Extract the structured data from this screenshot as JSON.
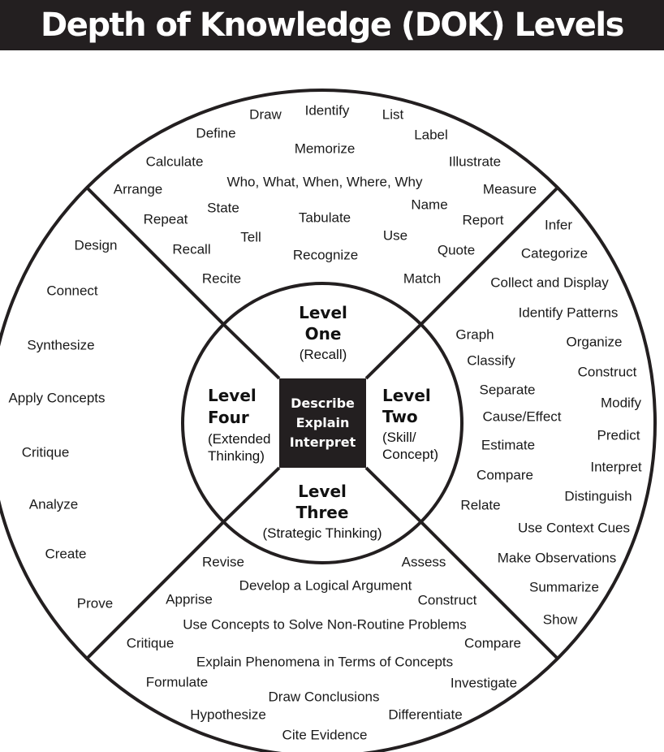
{
  "title": "Depth of Knowledge (DOK) Levels",
  "center": [
    "Describe",
    "Explain",
    "Interpret"
  ],
  "levels": {
    "one": {
      "title": [
        "Level",
        "One"
      ],
      "subtitle": [
        "(Recall)"
      ]
    },
    "two": {
      "title": [
        "Level",
        "Two"
      ],
      "subtitle": [
        "(Skill/",
        "Concept)"
      ]
    },
    "three": {
      "title": [
        "Level",
        "Three"
      ],
      "subtitle": [
        "(Strategic Thinking)"
      ]
    },
    "four": {
      "title": [
        "Level",
        "Four"
      ],
      "subtitle": [
        "(Extended",
        "Thinking)"
      ]
    }
  },
  "words": {
    "recall": [
      "Draw",
      "Identify",
      "List",
      "Define",
      "Label",
      "Memorize",
      "Calculate",
      "Illustrate",
      "Who, What, When, Where, Why",
      "Arrange",
      "Measure",
      "Name",
      "State",
      "Repeat",
      "Tabulate",
      "Report",
      "Tell",
      "Use",
      "Recall",
      "Quote",
      "Recognize",
      "Recite",
      "Match"
    ],
    "skill_concept": [
      "Infer",
      "Categorize",
      "Collect and Display",
      "Identify Patterns",
      "Graph",
      "Organize",
      "Classify",
      "Construct",
      "Separate",
      "Modify",
      "Cause/Effect",
      "Predict",
      "Estimate",
      "Interpret",
      "Compare",
      "Distinguish",
      "Relate",
      "Use Context Cues",
      "Make Observations",
      "Summarize",
      "Show"
    ],
    "strategic_thinking": [
      "Revise",
      "Assess",
      "Develop a Logical Argument",
      "Apprise",
      "Construct",
      "Use Concepts to Solve Non-Routine Problems",
      "Critique",
      "Compare",
      "Explain Phenomena in Terms of Concepts",
      "Formulate",
      "Investigate",
      "Draw Conclusions",
      "Hypothesize",
      "Differentiate",
      "Cite Evidence"
    ],
    "extended_thinking": [
      "Design",
      "Connect",
      "Synthesize",
      "Apply Concepts",
      "Critique",
      "Analyze",
      "Create",
      "Prove"
    ]
  }
}
